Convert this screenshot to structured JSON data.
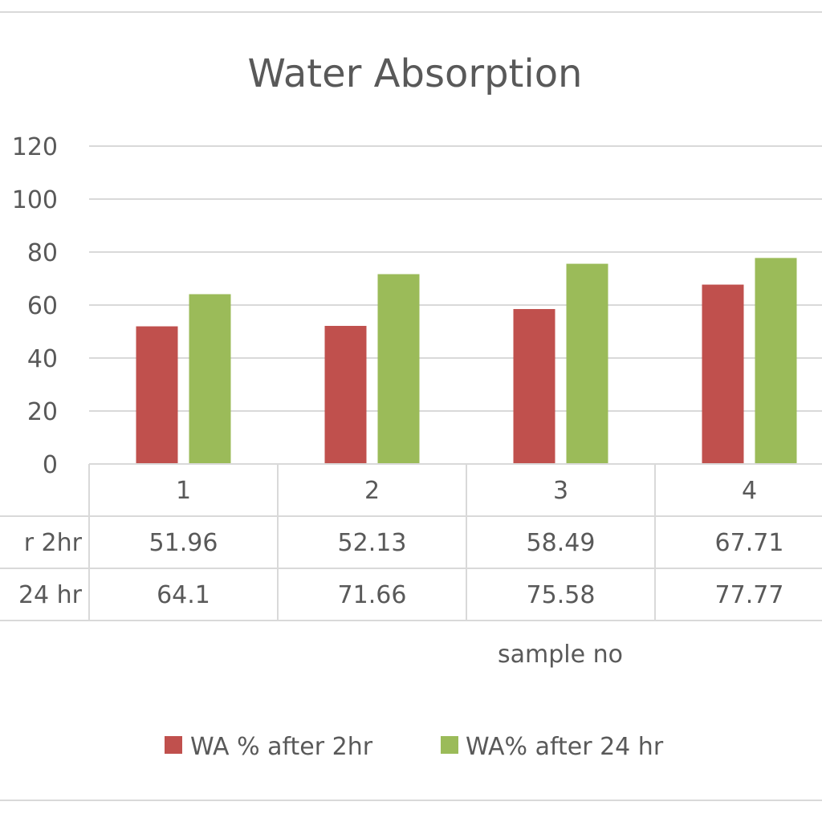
{
  "chart_data": {
    "type": "bar",
    "title": "Water Absorption",
    "xlabel": "sample no",
    "ylabel": "",
    "ylim": [
      0,
      120
    ],
    "yticks": [
      0,
      20,
      40,
      60,
      80,
      100,
      120
    ],
    "categories": [
      "1",
      "2",
      "3",
      "4"
    ],
    "series": [
      {
        "name": "WA % after 2hr",
        "values": [
          51.96,
          52.13,
          58.49,
          67.71
        ],
        "color": "#c0504d"
      },
      {
        "name": "WA% after 24 hr",
        "values": [
          64.1,
          71.66,
          75.58,
          77.77
        ],
        "color": "#9bbb59"
      }
    ],
    "data_table": {
      "row_labels": [
        "r 2hr",
        " 24 hr"
      ],
      "rows": [
        [
          "51.96",
          "52.13",
          "58.49",
          "67.71"
        ],
        [
          "64.1",
          "71.66",
          "75.58",
          "77.77"
        ]
      ]
    },
    "grid": true,
    "legend_position": "bottom"
  }
}
